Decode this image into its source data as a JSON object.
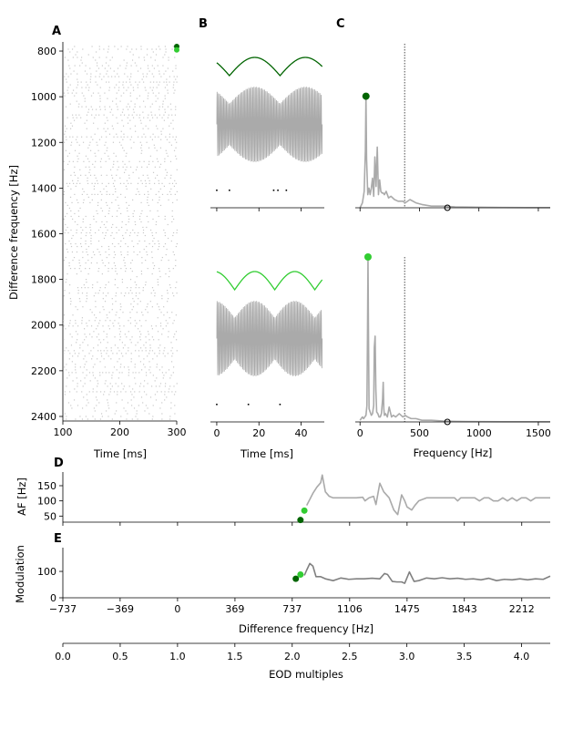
{
  "colors": {
    "gray": "#aaaaaa",
    "darkgray": "#808080",
    "dark_green": "#006400",
    "light_green": "#32cd32",
    "black": "#000000"
  },
  "chart_data": [
    {
      "panel": "A",
      "type": "scatter",
      "description_free": true,
      "xlabel": "Time [ms]",
      "ylabel": "Difference frequency [Hz]",
      "xlim": [
        100,
        300
      ],
      "ylim": [
        2420,
        760
      ],
      "y_inverted": true,
      "xticks": [
        "100",
        "200",
        "300"
      ],
      "yticks": [
        "800",
        "1000",
        "1200",
        "1400",
        "1600",
        "1800",
        "2000",
        "2200",
        "2400"
      ],
      "grid": false,
      "markers": [
        {
          "x": 300,
          "y": 780,
          "color": "dark_green"
        },
        {
          "x": 300,
          "y": 795,
          "color": "light_green"
        }
      ]
    },
    {
      "panel": "B",
      "type": "line",
      "xlabel": "Time [ms]",
      "xlim": [
        -3,
        51
      ],
      "xticks": [
        "0",
        "20",
        "40"
      ],
      "subplots": [
        {
          "envelope_color": "dark_green",
          "envelope_period_ms": 24,
          "envelope_phase_ms": 6,
          "spike_times": [
            0,
            6,
            27,
            29,
            33
          ]
        },
        {
          "envelope_color": "light_green",
          "envelope_period_ms": 19,
          "envelope_phase_ms": 1,
          "spike_times": [
            0,
            15,
            30
          ]
        }
      ]
    },
    {
      "panel": "C",
      "type": "line",
      "xlabel": "Frequency [Hz]",
      "xlim": [
        -40,
        1600
      ],
      "xticks": [
        "0",
        "500",
        "1000",
        "1500"
      ],
      "vline_x": 375,
      "subplots": [
        {
          "peak": {
            "x": 50,
            "y": 0.68,
            "color": "dark_green"
          },
          "open_marker": {
            "x": 735,
            "y": 0.0
          },
          "x": [
            0,
            20,
            35,
            45,
            50,
            55,
            65,
            75,
            85,
            95,
            105,
            115,
            125,
            135,
            145,
            155,
            165,
            175,
            185,
            195,
            205,
            220,
            240,
            260,
            290,
            320,
            360,
            380,
            420,
            470,
            520,
            600,
            700,
            800,
            1000,
            1200,
            1400,
            1600
          ],
          "y": [
            0.0,
            0.03,
            0.1,
            0.35,
            0.68,
            0.3,
            0.08,
            0.12,
            0.08,
            0.12,
            0.18,
            0.07,
            0.31,
            0.13,
            0.37,
            0.08,
            0.17,
            0.1,
            0.09,
            0.09,
            0.08,
            0.1,
            0.06,
            0.07,
            0.05,
            0.04,
            0.04,
            0.03,
            0.05,
            0.03,
            0.02,
            0.01,
            0.01,
            0.005,
            0.003,
            0.002,
            0.001,
            0.001
          ]
        },
        {
          "peak": {
            "x": 67,
            "y": 1.0,
            "color": "light_green"
          },
          "open_marker": {
            "x": 735,
            "y": 0.0
          },
          "x": [
            0,
            10,
            20,
            30,
            40,
            50,
            58,
            63,
            67,
            71,
            76,
            85,
            95,
            105,
            115,
            120,
            127,
            133,
            140,
            150,
            160,
            170,
            180,
            190,
            195,
            200,
            205,
            215,
            230,
            245,
            255,
            265,
            280,
            300,
            330,
            360,
            380,
            400,
            430,
            470,
            520,
            600,
            700,
            800,
            1000,
            1200,
            1400,
            1600
          ],
          "y": [
            0.01,
            0.02,
            0.03,
            0.02,
            0.03,
            0.04,
            0.1,
            0.55,
            1.0,
            0.55,
            0.08,
            0.06,
            0.04,
            0.05,
            0.1,
            0.45,
            0.52,
            0.2,
            0.06,
            0.05,
            0.03,
            0.03,
            0.05,
            0.14,
            0.24,
            0.08,
            0.04,
            0.05,
            0.03,
            0.09,
            0.06,
            0.03,
            0.04,
            0.03,
            0.05,
            0.03,
            0.04,
            0.03,
            0.02,
            0.02,
            0.01,
            0.01,
            0.005,
            0.003,
            0.002,
            0.001,
            0.001,
            0.001
          ]
        }
      ]
    },
    {
      "panel": "D",
      "type": "line",
      "ylabel": "AF [Hz]",
      "xlim": [
        -737,
        2395
      ],
      "ylim": [
        30,
        195
      ],
      "yticks": [
        "50",
        "100",
        "150"
      ],
      "x": [
        830,
        850,
        870,
        895,
        920,
        930,
        950,
        975,
        1000,
        1050,
        1100,
        1150,
        1190,
        1205,
        1230,
        1260,
        1275,
        1300,
        1325,
        1360,
        1390,
        1415,
        1440,
        1460,
        1475,
        1505,
        1525,
        1550,
        1600,
        1650,
        1700,
        1750,
        1780,
        1800,
        1820,
        1850,
        1880,
        1910,
        1940,
        1970,
        2000,
        2030,
        2060,
        2090,
        2120,
        2150,
        2180,
        2210,
        2240,
        2270,
        2300,
        2330,
        2360,
        2395
      ],
      "y": [
        85,
        105,
        125,
        145,
        160,
        185,
        130,
        115,
        110,
        110,
        110,
        110,
        112,
        100,
        110,
        115,
        88,
        158,
        130,
        110,
        70,
        55,
        120,
        100,
        80,
        70,
        85,
        100,
        110,
        110,
        110,
        110,
        110,
        100,
        110,
        110,
        110,
        110,
        100,
        110,
        110,
        100,
        100,
        110,
        100,
        110,
        100,
        110,
        110,
        100,
        110,
        110,
        110,
        110
      ],
      "markers": [
        {
          "x": 790,
          "y": 37,
          "color": "dark_green"
        },
        {
          "x": 815,
          "y": 68,
          "color": "light_green"
        }
      ]
    },
    {
      "panel": "E",
      "type": "line",
      "ylabel": "Modulation",
      "xlabel": "Difference frequency [Hz]",
      "xlim": [
        -737,
        2395
      ],
      "ylim": [
        0,
        190
      ],
      "yticks": [
        "0",
        "100"
      ],
      "xticks": [
        "−737",
        "−369",
        "0",
        "369",
        "737",
        "1106",
        "1475",
        "1843",
        "2212"
      ],
      "x": [
        815,
        830,
        850,
        870,
        890,
        920,
        950,
        1000,
        1050,
        1100,
        1150,
        1200,
        1250,
        1300,
        1330,
        1350,
        1380,
        1410,
        1440,
        1460,
        1490,
        1520,
        1550,
        1600,
        1650,
        1700,
        1750,
        1800,
        1850,
        1900,
        1950,
        2000,
        2050,
        2100,
        2150,
        2200,
        2250,
        2300,
        2350,
        2395
      ],
      "y": [
        85,
        105,
        130,
        120,
        80,
        80,
        72,
        65,
        75,
        70,
        72,
        72,
        74,
        72,
        92,
        88,
        62,
        60,
        60,
        55,
        98,
        62,
        65,
        75,
        72,
        76,
        72,
        74,
        70,
        72,
        68,
        74,
        65,
        70,
        68,
        72,
        68,
        72,
        70,
        82
      ],
      "markers": [
        {
          "x": 760,
          "y": 72,
          "color": "dark_green"
        },
        {
          "x": 790,
          "y": 88,
          "color": "light_green"
        }
      ]
    },
    {
      "panel": "EOD",
      "type": "axis",
      "xlabel": "EOD multiples",
      "xlim": [
        0,
        4.25
      ],
      "xticks": [
        "0.0",
        "0.5",
        "1.0",
        "1.5",
        "2.0",
        "2.5",
        "3.0",
        "3.5",
        "4.0"
      ]
    }
  ],
  "labels": {
    "A": "A",
    "B": "B",
    "C": "C",
    "D": "D",
    "E": "E",
    "ylabel_A": "Difference frequency [Hz]",
    "xlabel_A": "Time [ms]",
    "xlabel_B": "Time [ms]",
    "xlabel_C": "Frequency [Hz]",
    "ylabel_D": "AF [Hz]",
    "ylabel_E": "Modulation",
    "xlabel_E": "Difference frequency [Hz]",
    "xlabel_EOD": "EOD multiples"
  }
}
